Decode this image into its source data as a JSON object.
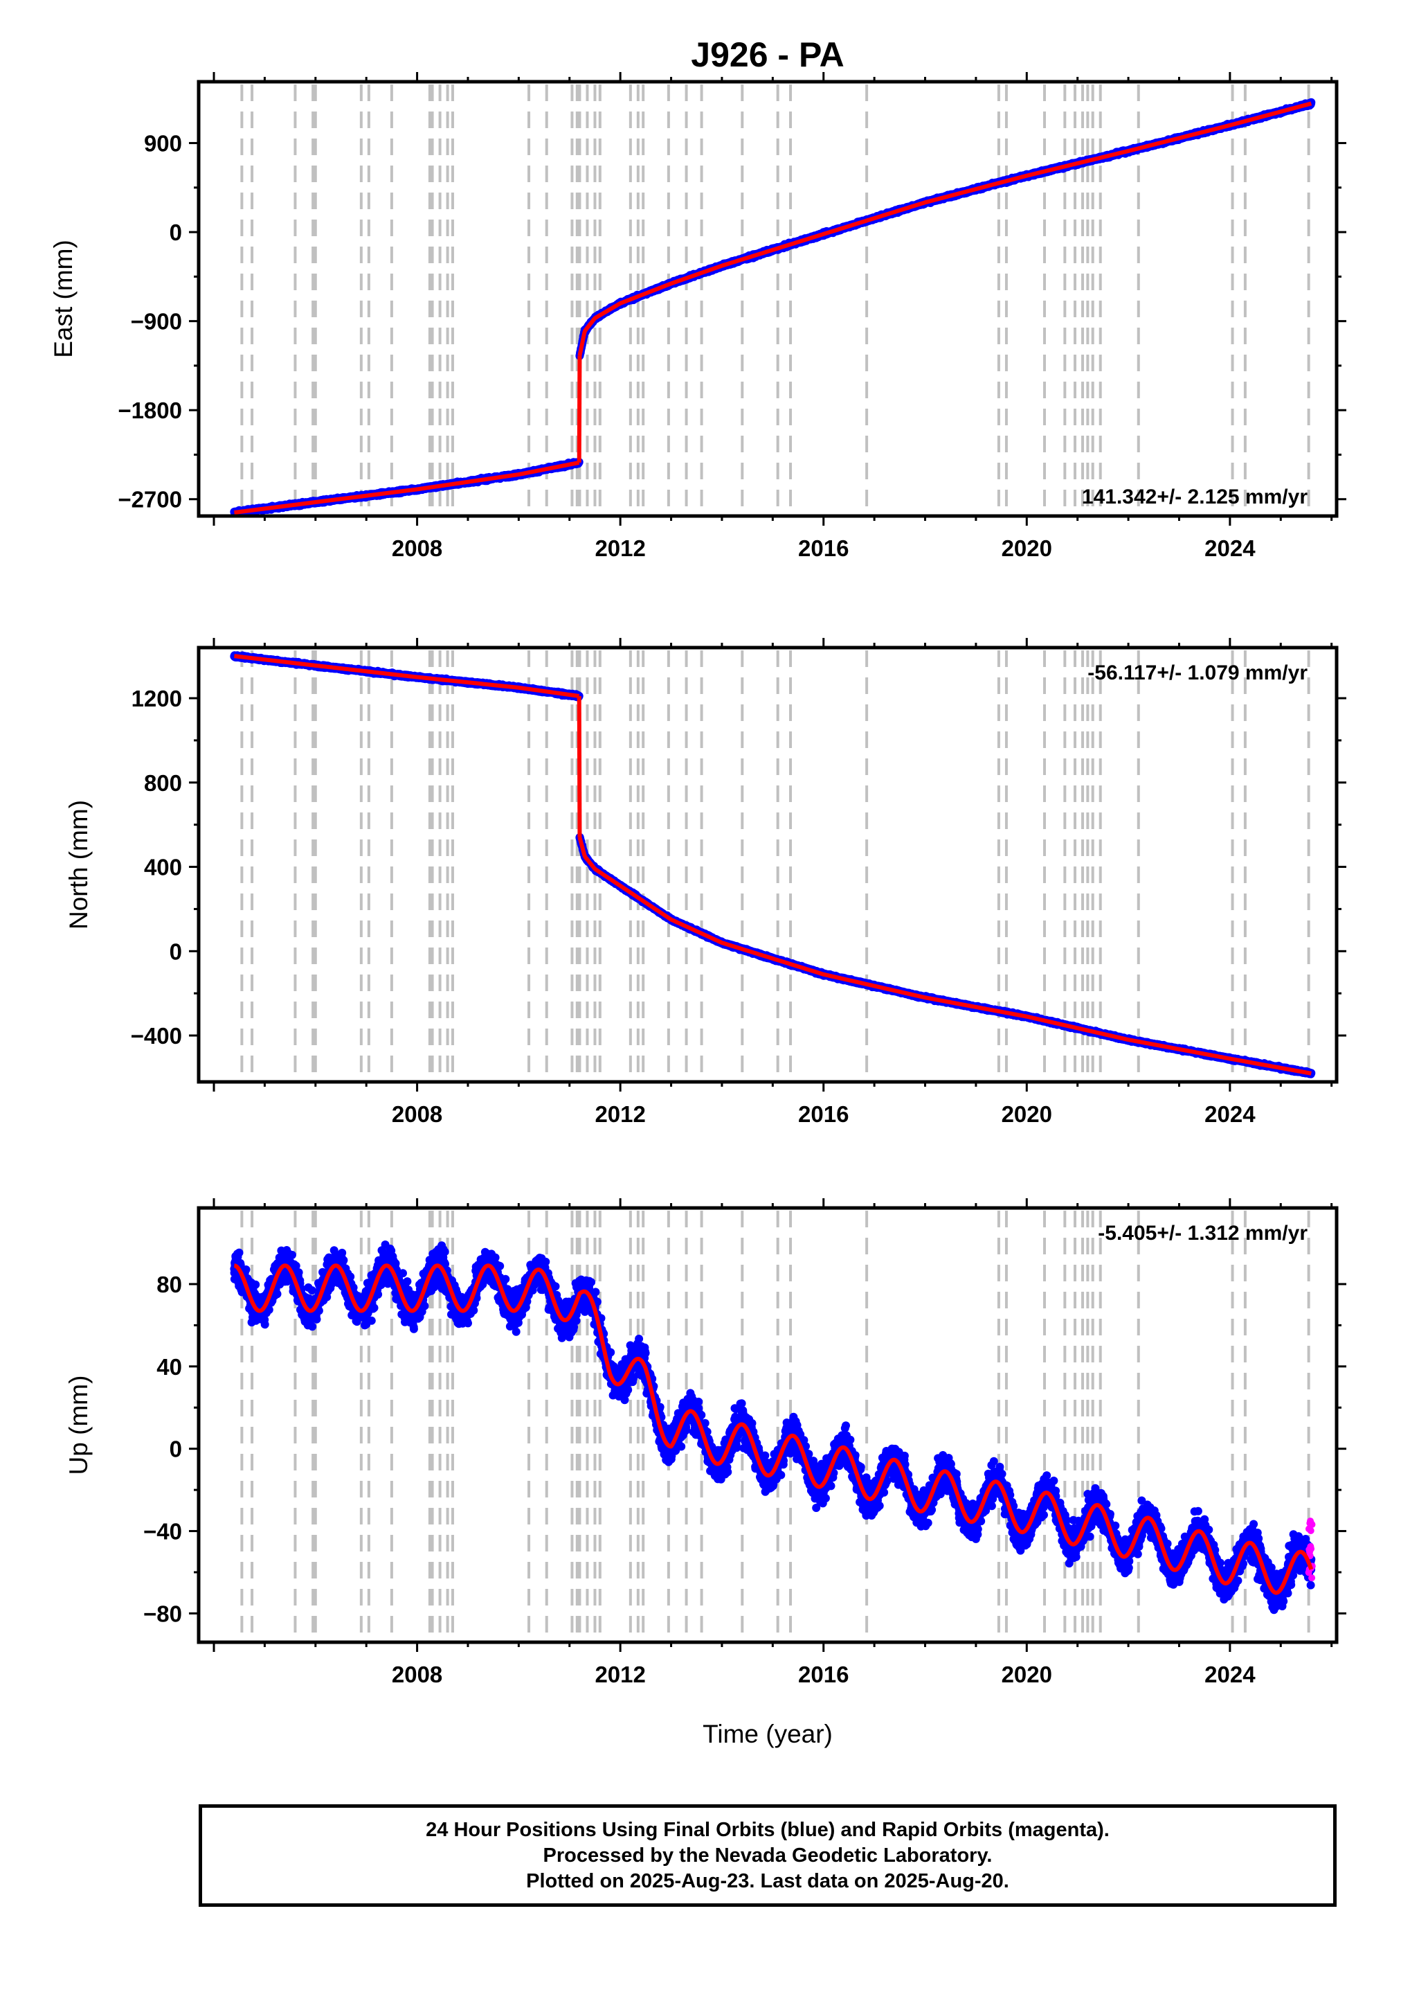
{
  "title": "J926 - PA",
  "xlabel": "Time (year)",
  "footer": {
    "line1": "24 Hour Positions Using Final Orbits (blue) and Rapid Orbits (magenta).",
    "line2": "Processed by the Nevada Geodetic Laboratory.",
    "line3": "Plotted on 2025-Aug-23. Last data on 2025-Aug-20."
  },
  "colors": {
    "final_orbits": "#0000ff",
    "rapid_orbits": "#ff00ff",
    "model": "#ff0000",
    "event_lines": "#c0c0c0"
  },
  "chart_data": [
    {
      "type": "scatter",
      "panel": "east",
      "ylabel": "East (mm)",
      "rate_text": "141.342+/- 2.125 mm/yr",
      "rate_position": "bottom-right",
      "xlim": [
        2003.7,
        2026.1
      ],
      "ylim": [
        -2870,
        1520
      ],
      "xticks": [
        2008,
        2012,
        2016,
        2020,
        2024
      ],
      "yticks": [
        -2700,
        -1800,
        -900,
        0,
        900
      ],
      "ytick_labels": [
        "−2700",
        "−1800",
        "−900",
        "0",
        "900"
      ],
      "series": [
        {
          "name": "Final Orbits",
          "color": "#0000ff",
          "x": [
            2004.4,
            2006,
            2008,
            2010,
            2011.19
          ],
          "y": [
            -2835,
            -2730,
            -2600,
            -2450,
            -2330
          ]
        },
        {
          "name": "Final Orbits",
          "color": "#0000ff",
          "x": [
            2011.2,
            2011.3,
            2011.5,
            2012,
            2013,
            2014,
            2016,
            2018,
            2020,
            2022,
            2024,
            2025.6
          ],
          "y": [
            -1250,
            -1000,
            -870,
            -720,
            -520,
            -340,
            -20,
            300,
            570,
            820,
            1080,
            1300
          ]
        }
      ],
      "event_years": [
        2004.55,
        2004.75,
        2005.6,
        2005.95,
        2006.0,
        2006.9,
        2007.05,
        2007.5,
        2008.25,
        2008.3,
        2008.45,
        2008.6,
        2008.7,
        2010.2,
        2010.55,
        2011.05,
        2011.15,
        2011.2,
        2011.35,
        2011.5,
        2011.6,
        2012.2,
        2012.35,
        2012.45,
        2012.95,
        2013.3,
        2013.6,
        2014.4,
        2015.1,
        2015.35,
        2016.85,
        2019.45,
        2019.6,
        2020.35,
        2020.75,
        2020.95,
        2021.1,
        2021.2,
        2021.3,
        2021.45,
        2022.2,
        2024.05,
        2024.3,
        2025.55
      ]
    },
    {
      "type": "scatter",
      "panel": "north",
      "ylabel": "North (mm)",
      "rate_text": "-56.117+/- 1.079 mm/yr",
      "rate_position": "top-right",
      "xlim": [
        2003.7,
        2026.1
      ],
      "ylim": [
        -620,
        1440
      ],
      "xticks": [
        2008,
        2012,
        2016,
        2020,
        2024
      ],
      "yticks": [
        -400,
        0,
        400,
        800,
        1200
      ],
      "ytick_labels": [
        "−400",
        "0",
        "400",
        "800",
        "1200"
      ],
      "series": [
        {
          "name": "Final Orbits",
          "color": "#0000ff",
          "x": [
            2004.4,
            2006,
            2008,
            2010,
            2011.19
          ],
          "y": [
            1400,
            1355,
            1300,
            1250,
            1210
          ]
        },
        {
          "name": "Final Orbits",
          "color": "#0000ff",
          "x": [
            2011.2,
            2011.3,
            2011.5,
            2012,
            2013,
            2014,
            2016,
            2018,
            2020,
            2022,
            2024,
            2025.6
          ],
          "y": [
            540,
            450,
            390,
            310,
            150,
            40,
            -110,
            -220,
            -310,
            -420,
            -510,
            -580
          ]
        }
      ],
      "event_years": [
        2004.55,
        2004.75,
        2005.6,
        2005.95,
        2006.0,
        2006.9,
        2007.05,
        2007.5,
        2008.25,
        2008.3,
        2008.45,
        2008.6,
        2008.7,
        2010.2,
        2010.55,
        2011.05,
        2011.15,
        2011.2,
        2011.35,
        2011.5,
        2011.6,
        2012.2,
        2012.35,
        2012.45,
        2012.95,
        2013.3,
        2013.6,
        2014.4,
        2015.1,
        2015.35,
        2016.85,
        2019.45,
        2019.6,
        2020.35,
        2020.75,
        2020.95,
        2021.1,
        2021.2,
        2021.3,
        2021.45,
        2022.2,
        2024.05,
        2024.3,
        2025.55
      ]
    },
    {
      "type": "scatter",
      "panel": "up",
      "ylabel": "Up (mm)",
      "rate_text": "-5.405+/- 1.312 mm/yr",
      "rate_position": "top-right",
      "xlim": [
        2003.7,
        2026.1
      ],
      "ylim": [
        -94,
        117
      ],
      "xticks": [
        2008,
        2012,
        2016,
        2020,
        2024
      ],
      "yticks": [
        -80,
        -40,
        0,
        40,
        80
      ],
      "ytick_labels": [
        "−80",
        "−40",
        "0",
        "40",
        "80"
      ],
      "annual_amplitude_mm": 11,
      "series": [
        {
          "name": "Final Orbits",
          "color": "#0000ff",
          "x": [
            2004.4,
            2006,
            2008,
            2010,
            2011.2,
            2011.8,
            2012.5,
            2013,
            2014,
            2016,
            2018,
            2020,
            2022,
            2024,
            2025.6
          ],
          "y": [
            78,
            78,
            78,
            78,
            72,
            45,
            30,
            10,
            3,
            -8,
            -20,
            -30,
            -42,
            -55,
            -62
          ]
        },
        {
          "name": "Rapid Orbits",
          "color": "#ff00ff",
          "x": [
            2025.55,
            2025.6,
            2025.62
          ],
          "y": [
            -32,
            -48,
            -63
          ]
        }
      ],
      "event_years": [
        2004.55,
        2004.75,
        2005.6,
        2005.95,
        2006.0,
        2006.9,
        2007.05,
        2007.5,
        2008.25,
        2008.3,
        2008.45,
        2008.6,
        2008.7,
        2010.2,
        2010.55,
        2011.05,
        2011.15,
        2011.2,
        2011.35,
        2011.5,
        2011.6,
        2012.2,
        2012.35,
        2012.45,
        2012.95,
        2013.3,
        2013.6,
        2014.4,
        2015.1,
        2015.35,
        2016.85,
        2019.45,
        2019.6,
        2020.35,
        2020.75,
        2020.95,
        2021.1,
        2021.2,
        2021.3,
        2021.45,
        2022.2,
        2024.05,
        2024.3,
        2025.55
      ]
    }
  ]
}
